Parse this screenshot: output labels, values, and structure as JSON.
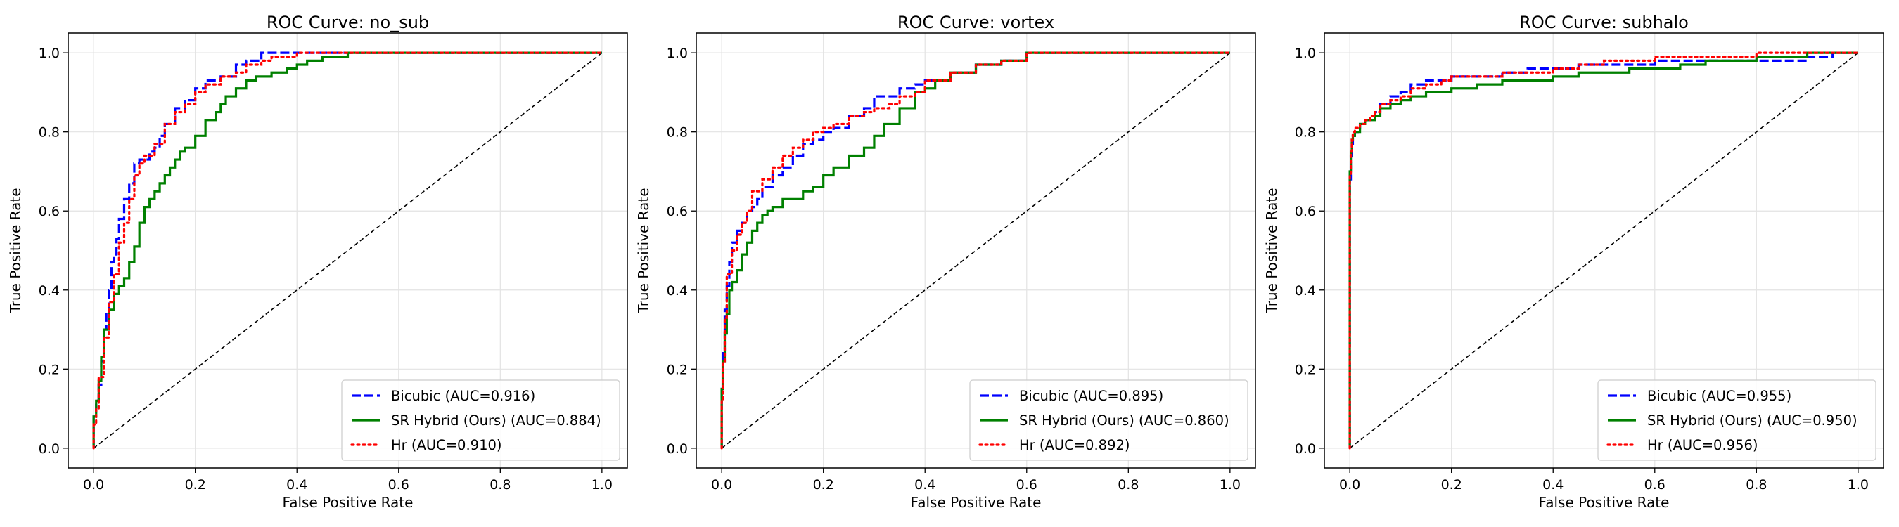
{
  "colors": {
    "bicubic": "#0000ff",
    "sr_hybrid": "#008000",
    "hr": "#ff0000",
    "diagonal": "#000000",
    "grid": "#e3e3e3"
  },
  "chart_data": [
    {
      "type": "line",
      "title": "ROC Curve: no_sub",
      "xlabel": "False Positive Rate",
      "ylabel": "True Positive Rate",
      "xlim": [
        -0.05,
        1.05
      ],
      "ylim": [
        -0.05,
        1.05
      ],
      "xticks": [
        "0.0",
        "0.2",
        "0.4",
        "0.6",
        "0.8",
        "1.0"
      ],
      "yticks": [
        "0.0",
        "0.2",
        "0.4",
        "0.6",
        "0.8",
        "1.0"
      ],
      "grid": true,
      "legend_position": "lower-right",
      "series": [
        {
          "key": "bicubic",
          "name": "Bicubic (AUC=0.916)",
          "style": "dashed",
          "x": [
            0,
            0.005,
            0.01,
            0.015,
            0.02,
            0.025,
            0.03,
            0.035,
            0.04,
            0.045,
            0.05,
            0.06,
            0.07,
            0.08,
            0.09,
            0.1,
            0.11,
            0.12,
            0.13,
            0.14,
            0.16,
            0.18,
            0.2,
            0.22,
            0.25,
            0.28,
            0.3,
            0.33,
            0.35,
            0.38,
            0.4,
            0.45,
            0.5,
            0.6,
            0.7,
            0.8,
            0.9,
            1.0
          ],
          "y": [
            0,
            0.08,
            0.12,
            0.16,
            0.22,
            0.3,
            0.34,
            0.4,
            0.47,
            0.49,
            0.53,
            0.58,
            0.63,
            0.67,
            0.72,
            0.73,
            0.73,
            0.75,
            0.76,
            0.79,
            0.82,
            0.86,
            0.88,
            0.91,
            0.93,
            0.94,
            0.97,
            0.98,
            1.0,
            1.0,
            1.0,
            1.0,
            1.0,
            1.0,
            1.0,
            1.0,
            1.0,
            1.0
          ]
        },
        {
          "key": "sr_hybrid",
          "name": "SR Hybrid (Ours) (AUC=0.884)",
          "style": "solid",
          "x": [
            0,
            0.005,
            0.01,
            0.015,
            0.02,
            0.03,
            0.04,
            0.05,
            0.06,
            0.07,
            0.08,
            0.09,
            0.1,
            0.11,
            0.12,
            0.13,
            0.14,
            0.15,
            0.16,
            0.17,
            0.18,
            0.2,
            0.22,
            0.24,
            0.25,
            0.26,
            0.28,
            0.3,
            0.32,
            0.35,
            0.38,
            0.4,
            0.42,
            0.45,
            0.5,
            0.55,
            0.6,
            0.7,
            0.8,
            0.9,
            1.0
          ],
          "y": [
            0,
            0.08,
            0.12,
            0.17,
            0.23,
            0.3,
            0.35,
            0.39,
            0.41,
            0.43,
            0.47,
            0.51,
            0.57,
            0.61,
            0.63,
            0.65,
            0.67,
            0.69,
            0.71,
            0.73,
            0.75,
            0.76,
            0.79,
            0.83,
            0.85,
            0.87,
            0.89,
            0.91,
            0.93,
            0.94,
            0.95,
            0.96,
            0.97,
            0.98,
            0.99,
            1.0,
            1.0,
            1.0,
            1.0,
            1.0,
            1.0
          ]
        },
        {
          "key": "hr",
          "name": "Hr (AUC=0.910)",
          "style": "dotted",
          "x": [
            0,
            0.005,
            0.01,
            0.02,
            0.03,
            0.04,
            0.05,
            0.06,
            0.07,
            0.08,
            0.09,
            0.1,
            0.12,
            0.14,
            0.16,
            0.18,
            0.2,
            0.22,
            0.25,
            0.28,
            0.3,
            0.33,
            0.35,
            0.4,
            0.45,
            0.5,
            0.6,
            0.7,
            0.8,
            0.9,
            1.0
          ],
          "y": [
            0,
            0.06,
            0.1,
            0.18,
            0.28,
            0.37,
            0.44,
            0.52,
            0.57,
            0.63,
            0.69,
            0.72,
            0.74,
            0.77,
            0.82,
            0.85,
            0.87,
            0.9,
            0.92,
            0.94,
            0.95,
            0.97,
            0.98,
            0.99,
            1.0,
            1.0,
            1.0,
            1.0,
            1.0,
            1.0,
            1.0
          ]
        }
      ]
    },
    {
      "type": "line",
      "title": "ROC Curve: vortex",
      "xlabel": "False Positive Rate",
      "ylabel": "True Positive Rate",
      "xlim": [
        -0.05,
        1.05
      ],
      "ylim": [
        -0.05,
        1.05
      ],
      "xticks": [
        "0.0",
        "0.2",
        "0.4",
        "0.6",
        "0.8",
        "1.0"
      ],
      "yticks": [
        "0.0",
        "0.2",
        "0.4",
        "0.6",
        "0.8",
        "1.0"
      ],
      "grid": true,
      "legend_position": "lower-right",
      "series": [
        {
          "key": "bicubic",
          "name": "Bicubic (AUC=0.895)",
          "style": "dashed",
          "x": [
            0,
            0.003,
            0.006,
            0.01,
            0.015,
            0.02,
            0.03,
            0.04,
            0.05,
            0.06,
            0.07,
            0.08,
            0.1,
            0.12,
            0.14,
            0.16,
            0.18,
            0.2,
            0.22,
            0.25,
            0.28,
            0.3,
            0.33,
            0.35,
            0.38,
            0.4,
            0.43,
            0.45,
            0.5,
            0.55,
            0.6,
            0.65,
            0.7,
            0.8,
            0.9,
            1.0
          ],
          "y": [
            0,
            0.15,
            0.25,
            0.35,
            0.41,
            0.47,
            0.52,
            0.55,
            0.57,
            0.6,
            0.61,
            0.63,
            0.66,
            0.69,
            0.71,
            0.74,
            0.77,
            0.78,
            0.8,
            0.81,
            0.84,
            0.86,
            0.89,
            0.89,
            0.91,
            0.92,
            0.93,
            0.93,
            0.95,
            0.97,
            0.98,
            1.0,
            1.0,
            1.0,
            1.0,
            1.0
          ]
        },
        {
          "key": "sr_hybrid",
          "name": "SR Hybrid (Ours) (AUC=0.860)",
          "style": "solid",
          "x": [
            0,
            0.003,
            0.006,
            0.01,
            0.015,
            0.02,
            0.03,
            0.04,
            0.05,
            0.06,
            0.07,
            0.08,
            0.09,
            0.1,
            0.12,
            0.14,
            0.16,
            0.18,
            0.2,
            0.22,
            0.25,
            0.28,
            0.3,
            0.32,
            0.35,
            0.38,
            0.4,
            0.42,
            0.45,
            0.5,
            0.55,
            0.6,
            0.7,
            0.8,
            0.9,
            1.0
          ],
          "y": [
            0,
            0.15,
            0.22,
            0.29,
            0.34,
            0.4,
            0.42,
            0.45,
            0.49,
            0.52,
            0.55,
            0.57,
            0.59,
            0.6,
            0.61,
            0.63,
            0.63,
            0.65,
            0.66,
            0.69,
            0.71,
            0.74,
            0.76,
            0.79,
            0.82,
            0.86,
            0.9,
            0.91,
            0.93,
            0.95,
            0.97,
            0.98,
            1.0,
            1.0,
            1.0,
            1.0
          ]
        },
        {
          "key": "hr",
          "name": "Hr (AUC=0.892)",
          "style": "dotted",
          "x": [
            0,
            0.003,
            0.006,
            0.01,
            0.02,
            0.03,
            0.04,
            0.05,
            0.06,
            0.08,
            0.1,
            0.12,
            0.14,
            0.16,
            0.18,
            0.2,
            0.22,
            0.25,
            0.28,
            0.3,
            0.33,
            0.35,
            0.38,
            0.4,
            0.45,
            0.5,
            0.55,
            0.6,
            0.7,
            0.8,
            0.9,
            1.0
          ],
          "y": [
            0,
            0.12,
            0.22,
            0.33,
            0.44,
            0.5,
            0.54,
            0.57,
            0.6,
            0.65,
            0.68,
            0.71,
            0.74,
            0.76,
            0.78,
            0.8,
            0.81,
            0.82,
            0.84,
            0.85,
            0.86,
            0.87,
            0.89,
            0.9,
            0.93,
            0.95,
            0.97,
            0.98,
            1.0,
            1.0,
            1.0,
            1.0
          ]
        }
      ]
    },
    {
      "type": "line",
      "title": "ROC Curve: subhalo",
      "xlabel": "False Positive Rate",
      "ylabel": "True Positive Rate",
      "xlim": [
        -0.05,
        1.05
      ],
      "ylim": [
        -0.05,
        1.05
      ],
      "xticks": [
        "0.0",
        "0.2",
        "0.4",
        "0.6",
        "0.8",
        "1.0"
      ],
      "yticks": [
        "0.0",
        "0.2",
        "0.4",
        "0.6",
        "0.8",
        "1.0"
      ],
      "grid": true,
      "legend_position": "lower-right",
      "series": [
        {
          "key": "bicubic",
          "name": "Bicubic (AUC=0.955)",
          "style": "dashed",
          "x": [
            0,
            0.002,
            0.004,
            0.006,
            0.01,
            0.015,
            0.02,
            0.03,
            0.04,
            0.05,
            0.06,
            0.08,
            0.1,
            0.12,
            0.15,
            0.18,
            0.2,
            0.25,
            0.3,
            0.35,
            0.4,
            0.45,
            0.5,
            0.55,
            0.6,
            0.65,
            0.7,
            0.75,
            0.8,
            0.85,
            0.9,
            0.95,
            1.0
          ],
          "y": [
            0,
            0.68,
            0.74,
            0.77,
            0.79,
            0.8,
            0.8,
            0.82,
            0.83,
            0.84,
            0.85,
            0.87,
            0.89,
            0.9,
            0.92,
            0.93,
            0.93,
            0.94,
            0.94,
            0.95,
            0.96,
            0.96,
            0.97,
            0.97,
            0.97,
            0.98,
            0.98,
            0.98,
            0.98,
            0.98,
            0.98,
            0.99,
            1.0
          ]
        },
        {
          "key": "sr_hybrid",
          "name": "SR Hybrid (Ours) (AUC=0.950)",
          "style": "solid",
          "x": [
            0,
            0.002,
            0.004,
            0.006,
            0.01,
            0.02,
            0.03,
            0.04,
            0.05,
            0.06,
            0.08,
            0.1,
            0.12,
            0.15,
            0.18,
            0.2,
            0.25,
            0.3,
            0.35,
            0.4,
            0.45,
            0.5,
            0.55,
            0.6,
            0.65,
            0.7,
            0.75,
            0.8,
            0.85,
            0.9,
            0.95,
            1.0
          ],
          "y": [
            0,
            0.7,
            0.75,
            0.78,
            0.79,
            0.8,
            0.82,
            0.83,
            0.83,
            0.84,
            0.86,
            0.87,
            0.88,
            0.89,
            0.9,
            0.9,
            0.91,
            0.92,
            0.93,
            0.93,
            0.94,
            0.95,
            0.95,
            0.96,
            0.96,
            0.97,
            0.98,
            0.98,
            0.99,
            0.99,
            1.0,
            1.0
          ]
        },
        {
          "key": "hr",
          "name": "Hr (AUC=0.956)",
          "style": "dotted",
          "x": [
            0,
            0.002,
            0.004,
            0.006,
            0.01,
            0.015,
            0.02,
            0.03,
            0.04,
            0.05,
            0.06,
            0.08,
            0.1,
            0.12,
            0.15,
            0.18,
            0.2,
            0.25,
            0.3,
            0.35,
            0.4,
            0.45,
            0.5,
            0.55,
            0.6,
            0.7,
            0.8,
            0.9,
            1.0
          ],
          "y": [
            0,
            0.69,
            0.75,
            0.78,
            0.8,
            0.81,
            0.81,
            0.82,
            0.83,
            0.84,
            0.85,
            0.87,
            0.88,
            0.89,
            0.91,
            0.92,
            0.93,
            0.94,
            0.94,
            0.95,
            0.95,
            0.96,
            0.97,
            0.98,
            0.98,
            0.99,
            0.99,
            1.0,
            1.0
          ]
        }
      ]
    }
  ]
}
